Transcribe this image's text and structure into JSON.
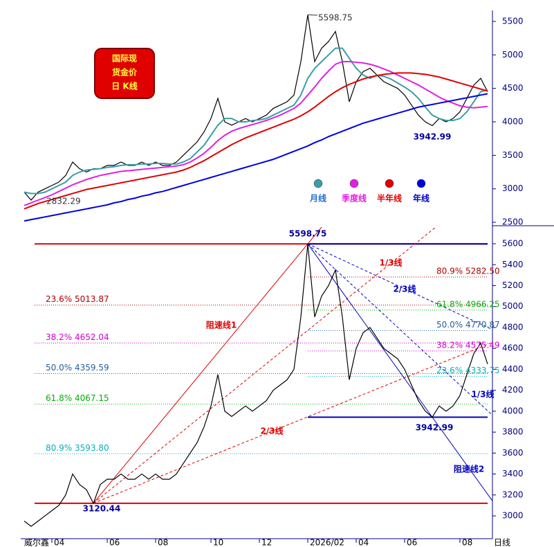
{
  "logo": [
    "国际现",
    "货金价",
    "日 K线"
  ],
  "watermark": "威尔鑫",
  "chart_data": [
    {
      "type": "line",
      "ylim": [
        2459,
        5665
      ],
      "yticks": [
        2500,
        3000,
        3500,
        4000,
        4500,
        5000,
        5500
      ],
      "anchors": {
        "high": 5598.75,
        "low": 2832.29,
        "low2": 3942.99
      },
      "series": [
        {
          "color": "#000000",
          "values": [
            2950,
            2832.29,
            2950,
            3000,
            3050,
            3100,
            3200,
            3400,
            3300,
            3250,
            3300,
            3300,
            3350,
            3350,
            3400,
            3350,
            3350,
            3400,
            3350,
            3400,
            3350,
            3350,
            3400,
            3500,
            3600,
            3700,
            3850,
            4050,
            4350,
            4000,
            3950,
            4000,
            4050,
            4000,
            4050,
            4100,
            4200,
            4250,
            4300,
            4400,
            4900,
            5598.75,
            4900,
            5100,
            5200,
            5350,
            4900,
            4300,
            4600,
            4750,
            4800,
            4700,
            4600,
            4550,
            4500,
            4400,
            4250,
            4100,
            4000,
            3942.99,
            4050,
            4000,
            4050,
            4150,
            4350,
            4550,
            4650,
            4450
          ]
        },
        {
          "name": "月线",
          "color": "#3a9ea5",
          "label_color": "#1a6fd0",
          "values": [
            2950,
            2930,
            2930,
            2950,
            3000,
            3050,
            3100,
            3200,
            3250,
            3280,
            3290,
            3300,
            3320,
            3330,
            3350,
            3360,
            3360,
            3370,
            3370,
            3380,
            3380,
            3370,
            3370,
            3400,
            3450,
            3550,
            3650,
            3800,
            3950,
            4050,
            4050,
            4000,
            4000,
            4020,
            4030,
            4050,
            4100,
            4150,
            4200,
            4250,
            4400,
            4650,
            4800,
            4900,
            5000,
            5100,
            5100,
            4950,
            4800,
            4700,
            4650,
            4700,
            4680,
            4640,
            4580,
            4520,
            4450,
            4350,
            4220,
            4100,
            4050,
            4020,
            4020,
            4050,
            4150,
            4300,
            4450,
            4480
          ]
        },
        {
          "name": "季度线",
          "color": "#e020e0",
          "label_color": "#e020e0",
          "values": [
            2750,
            2790,
            2830,
            2870,
            2910,
            2960,
            3010,
            3060,
            3100,
            3140,
            3170,
            3200,
            3220,
            3240,
            3260,
            3270,
            3280,
            3290,
            3300,
            3310,
            3320,
            3330,
            3340,
            3360,
            3400,
            3460,
            3530,
            3620,
            3720,
            3800,
            3860,
            3900,
            3930,
            3960,
            3990,
            4020,
            4060,
            4100,
            4150,
            4200,
            4280,
            4400,
            4520,
            4650,
            4760,
            4860,
            4900,
            4900,
            4890,
            4880,
            4860,
            4830,
            4790,
            4750,
            4700,
            4650,
            4600,
            4550,
            4490,
            4430,
            4370,
            4320,
            4280,
            4240,
            4220,
            4210,
            4220,
            4230
          ]
        },
        {
          "name": "半年线",
          "color": "#e00000",
          "label_color": "#e00000",
          "values": [
            2700,
            2740,
            2780,
            2810,
            2840,
            2870,
            2900,
            2930,
            2960,
            2990,
            3010,
            3030,
            3050,
            3070,
            3090,
            3110,
            3130,
            3150,
            3170,
            3190,
            3210,
            3230,
            3250,
            3280,
            3320,
            3370,
            3420,
            3480,
            3540,
            3600,
            3660,
            3710,
            3760,
            3800,
            3840,
            3880,
            3920,
            3960,
            4000,
            4040,
            4090,
            4150,
            4220,
            4300,
            4380,
            4450,
            4510,
            4560,
            4600,
            4640,
            4670,
            4690,
            4710,
            4720,
            4730,
            4730,
            4730,
            4720,
            4710,
            4690,
            4670,
            4640,
            4610,
            4580,
            4550,
            4520,
            4490,
            4460
          ]
        },
        {
          "name": "年线",
          "color": "#0000e0",
          "label_color": "#0000c0",
          "values": [
            2520,
            2540,
            2560,
            2580,
            2600,
            2620,
            2640,
            2660,
            2680,
            2700,
            2720,
            2740,
            2760,
            2790,
            2810,
            2840,
            2860,
            2890,
            2910,
            2940,
            2960,
            2990,
            3020,
            3050,
            3080,
            3110,
            3140,
            3170,
            3200,
            3230,
            3260,
            3290,
            3320,
            3350,
            3380,
            3410,
            3440,
            3480,
            3520,
            3560,
            3600,
            3640,
            3690,
            3730,
            3780,
            3820,
            3860,
            3900,
            3940,
            3980,
            4010,
            4040,
            4070,
            4100,
            4130,
            4160,
            4190,
            4220,
            4240,
            4260,
            4280,
            4300,
            4320,
            4340,
            4360,
            4380,
            4400,
            4420
          ]
        }
      ]
    },
    {
      "type": "line",
      "ylim": [
        2782,
        5759
      ],
      "yticks": [
        3000,
        3200,
        3400,
        3600,
        3800,
        4000,
        4200,
        4400,
        4600,
        4800,
        5000,
        5200,
        5400,
        5600
      ],
      "xlabel": "日线",
      "categories": [
        null,
        null,
        null,
        null,
        "04",
        null,
        null,
        null,
        null,
        null,
        null,
        null,
        "06",
        null,
        null,
        null,
        null,
        null,
        null,
        "08",
        null,
        null,
        null,
        null,
        null,
        null,
        null,
        "10",
        null,
        null,
        null,
        null,
        null,
        null,
        "12",
        null,
        null,
        null,
        null,
        null,
        null,
        "2026/02",
        null,
        null,
        null,
        null,
        null,
        null,
        "04",
        null,
        null,
        null,
        null,
        null,
        null,
        "06",
        null,
        null,
        null,
        null,
        null,
        null,
        null,
        "08",
        null,
        null,
        null,
        null
      ],
      "color": "#000000",
      "values": [
        2950,
        2900,
        2950,
        3000,
        3050,
        3100,
        3200,
        3400,
        3300,
        3250,
        3120.44,
        3300,
        3350,
        3350,
        3400,
        3350,
        3350,
        3400,
        3350,
        3400,
        3350,
        3350,
        3400,
        3500,
        3600,
        3700,
        3850,
        4050,
        4350,
        4000,
        3950,
        4000,
        4050,
        4000,
        4050,
        4100,
        4200,
        4250,
        4300,
        4400,
        4900,
        5598.75,
        4900,
        5100,
        5200,
        5350,
        4900,
        4300,
        4600,
        4750,
        4800,
        4700,
        4600,
        4550,
        4500,
        4400,
        4250,
        4100,
        4000,
        3942.99,
        4050,
        4000,
        4050,
        4150,
        4350,
        4550,
        4650,
        4450
      ],
      "anchors": {
        "high": 5598.75,
        "low": 3120.44,
        "low2": 3942.99
      },
      "fib_left": [
        {
          "ratio": "23.6%",
          "value": 5013.87,
          "color": "#b00000"
        },
        {
          "ratio": "38.2%",
          "value": 4652.04,
          "color": "#d000d0"
        },
        {
          "ratio": "50.0%",
          "value": 4359.59,
          "color": "#2060a0"
        },
        {
          "ratio": "61.8%",
          "value": 4067.15,
          "color": "#00b000"
        },
        {
          "ratio": "80.9%",
          "value": 3593.8,
          "value_label": "3593.80",
          "color": "#00b0c0"
        }
      ],
      "fib_right": [
        {
          "ratio": "80.9%",
          "value": 5282.5,
          "value_label": "5282.50",
          "color": "#b00000"
        },
        {
          "ratio": "61.8%",
          "value": 4966.25,
          "color": "#00b000"
        },
        {
          "ratio": "50.0%",
          "value": 4770.87,
          "color": "#2060a0"
        },
        {
          "ratio": "38.2%",
          "value": 4575.49,
          "color": "#d000d0"
        },
        {
          "ratio": "23.6%",
          "value": 4333.75,
          "color": "#00b0c0"
        }
      ],
      "fans": [
        {
          "color": "#e00000",
          "from": "low",
          "lines": [
            {
              "label": "阻速线1",
              "fraction": 1,
              "dashed": false
            },
            {
              "label": "1/3线",
              "fraction": 0.6667,
              "dashed": true
            },
            {
              "label": "2/3线",
              "fraction": 0.3333,
              "dashed": true
            }
          ]
        },
        {
          "color": "#0000c0",
          "from": "high",
          "lines": [
            {
              "label": "阻速线2",
              "fraction": 1,
              "dashed": false
            },
            {
              "label": "2/3线",
              "fraction": 0.3333,
              "dashed": true
            },
            {
              "label": "1/3线",
              "fraction": 0.6667,
              "dashed": true
            }
          ]
        }
      ]
    }
  ]
}
